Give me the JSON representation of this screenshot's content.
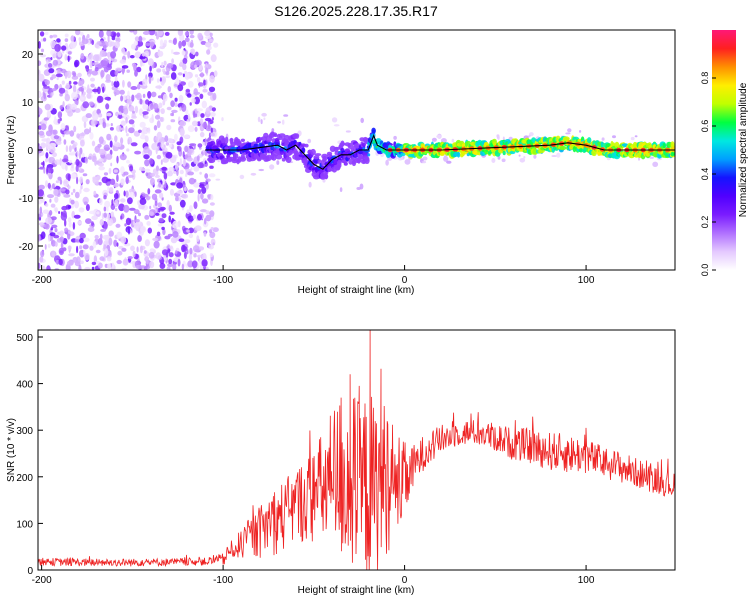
{
  "title": "S126.2025.228.17.35.R17",
  "colors": {
    "snr_line": "#ee2222",
    "ridge_line": "#000000",
    "colormap": [
      "#ffffff",
      "#e4c8ff",
      "#b070ff",
      "#7a1cff",
      "#5000ff",
      "#1414ff",
      "#00a0ff",
      "#00e8e0",
      "#00ff40",
      "#c0ff00",
      "#ffee00",
      "#ff9000",
      "#ff2020",
      "#ff1877"
    ]
  },
  "chart_data": [
    {
      "type": "heatmap",
      "title": "S126.2025.228.17.35.R17",
      "xlabel": "Height of straight line (km)",
      "ylabel": "Frequency (Hz)",
      "xlim": [
        -202,
        149
      ],
      "ylim": [
        -25,
        25
      ],
      "xticks": [
        -200,
        -100,
        0,
        100
      ],
      "xtick_labels": [
        "-200",
        "-100",
        "0",
        "100"
      ],
      "yticks": [
        -20,
        -10,
        0,
        10,
        20
      ],
      "ytick_labels": [
        "-20",
        "-10",
        "0",
        "10",
        "20"
      ],
      "colorbar": {
        "label": "Normalized spectral amplitude",
        "range": [
          0,
          1
        ],
        "ticks": [
          0.0,
          0.2,
          0.4,
          0.6,
          0.8
        ],
        "tick_labels": [
          "0.0",
          "0.2",
          "0.4",
          "0.6",
          "0.8"
        ]
      },
      "ridge": {
        "x": [
          -110,
          -100,
          -90,
          -80,
          -70,
          -65,
          -60,
          -55,
          -50,
          -45,
          -40,
          -35,
          -30,
          -25,
          -20,
          -17,
          -15,
          -10,
          0,
          20,
          50,
          80,
          90,
          100,
          110,
          149
        ],
        "y": [
          0,
          0,
          0,
          0.5,
          1,
          0,
          1,
          -1,
          -3,
          -4,
          -2,
          -1,
          -1,
          0,
          0,
          3,
          1,
          0,
          0,
          0,
          0.5,
          1,
          1.5,
          1,
          0,
          0
        ]
      }
    },
    {
      "type": "line",
      "xlabel": "Height of straight line (km)",
      "ylabel": "SNR (10 * v/v)",
      "xlim": [
        -202,
        149
      ],
      "ylim": [
        0,
        515
      ],
      "xticks": [
        -200,
        -100,
        0,
        100
      ],
      "xtick_labels": [
        "-200",
        "-100",
        "0",
        "100"
      ],
      "yticks": [
        0,
        100,
        200,
        300,
        400,
        500
      ],
      "ytick_labels": [
        "0",
        "100",
        "200",
        "300",
        "400",
        "500"
      ],
      "series": [
        {
          "x": [
            -202,
            -190,
            -170,
            -150,
            -130,
            -110,
            -100,
            -95,
            -90,
            -85,
            -80,
            -75,
            -70,
            -65,
            -60,
            -55,
            -50,
            -45,
            -40,
            -35,
            -30,
            -25,
            -20,
            -15,
            -10,
            -5,
            0,
            5,
            10,
            20,
            30,
            40,
            50,
            60,
            70,
            80,
            90,
            100,
            110,
            120,
            130,
            140,
            149
          ],
          "y": [
            18,
            17,
            16,
            16,
            17,
            18,
            22,
            45,
            55,
            70,
            80,
            100,
            110,
            120,
            140,
            150,
            160,
            175,
            185,
            200,
            190,
            170,
            180,
            160,
            200,
            180,
            190,
            220,
            250,
            280,
            295,
            295,
            285,
            270,
            265,
            255,
            250,
            245,
            230,
            220,
            205,
            190,
            180
          ],
          "spread": [
            12,
            12,
            12,
            12,
            12,
            12,
            20,
            30,
            45,
            60,
            80,
            100,
            110,
            110,
            120,
            130,
            150,
            180,
            240,
            260,
            300,
            280,
            300,
            290,
            240,
            180,
            120,
            70,
            55,
            45,
            40,
            40,
            45,
            50,
            55,
            60,
            60,
            55,
            50,
            50,
            45,
            40,
            40
          ],
          "peaks": [
            {
              "x": -19,
              "y": 515
            },
            {
              "x": -13,
              "y": 432
            },
            {
              "x": -30,
              "y": 420
            },
            {
              "x": -25,
              "y": 395
            },
            {
              "x": -35,
              "y": 370
            }
          ]
        }
      ]
    }
  ]
}
